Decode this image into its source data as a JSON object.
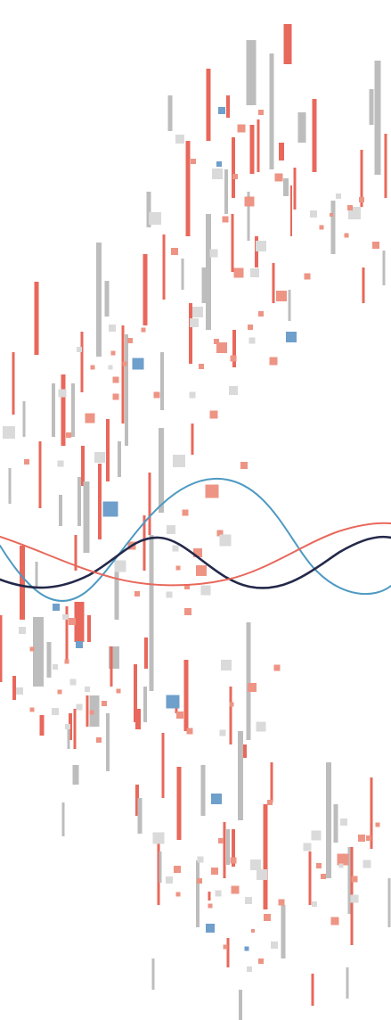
{
  "artwork": {
    "background": "#ffffff",
    "palette": {
      "red": "#e8685b",
      "salmon": "#ee9484",
      "gray": "#bdbdbd",
      "light_gray": "#dadada",
      "blue": "#6f9fcb",
      "teal_wave": "#4e9ac2",
      "navy_wave": "#24294a",
      "red_wave": "#e8685b"
    },
    "waves": [
      {
        "name": "teal-wave",
        "color": "teal_wave"
      },
      {
        "name": "navy-wave",
        "color": "navy_wave"
      },
      {
        "name": "red-wave",
        "color": "red_wave"
      }
    ]
  }
}
